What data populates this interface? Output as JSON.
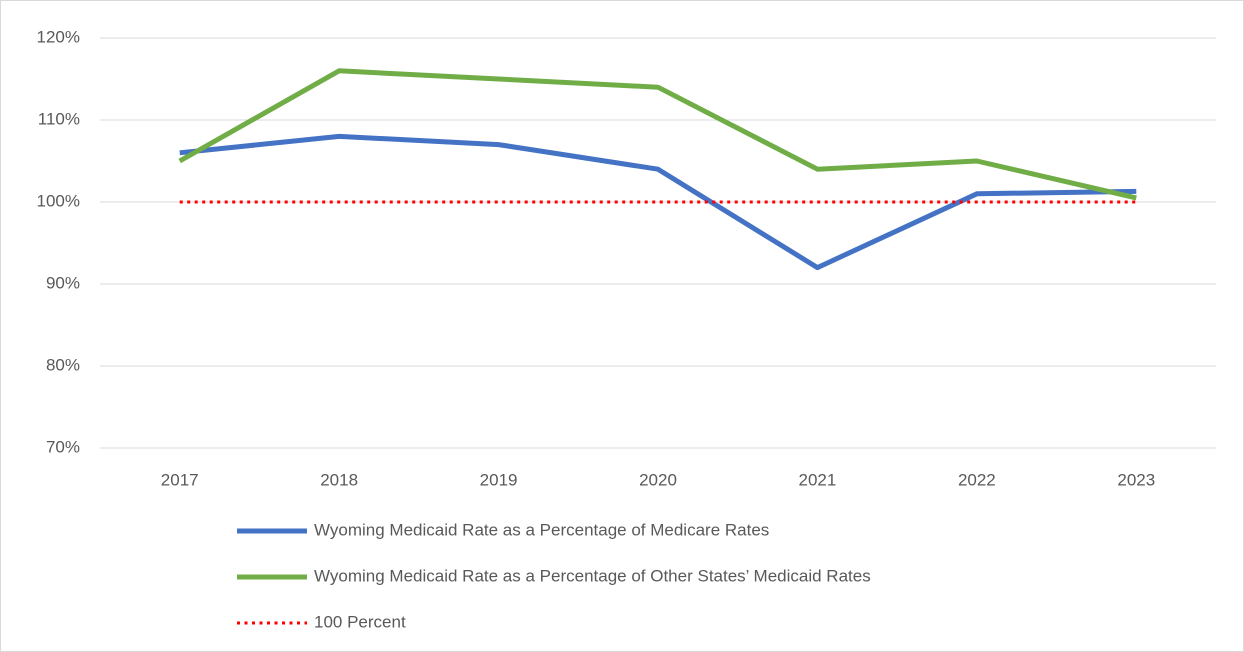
{
  "chart_data": {
    "type": "line",
    "categories": [
      "2017",
      "2018",
      "2019",
      "2020",
      "2021",
      "2022",
      "2023"
    ],
    "series": [
      {
        "name": "Wyoming Medicaid Rate as a Percentage of Medicare Rates",
        "color": "#4472c4",
        "style": "solid",
        "values": [
          106,
          108,
          107,
          104,
          92,
          101,
          101.3
        ]
      },
      {
        "name": "Wyoming Medicaid Rate as a Percentage of Other States’ Medicaid Rates",
        "color": "#70ad47",
        "style": "solid",
        "values": [
          105,
          116,
          115,
          114,
          104,
          105,
          100.5
        ]
      },
      {
        "name": "100 Percent",
        "color": "#ff0000",
        "style": "dotted",
        "values": [
          100,
          100,
          100,
          100,
          100,
          100,
          100
        ]
      }
    ],
    "ylim": [
      70,
      120
    ],
    "yticks": [
      {
        "value": 70,
        "label": "70%"
      },
      {
        "value": 80,
        "label": "80%"
      },
      {
        "value": 90,
        "label": "90%"
      },
      {
        "value": 100,
        "label": "100%"
      },
      {
        "value": 110,
        "label": "110%"
      },
      {
        "value": 120,
        "label": "120%"
      }
    ],
    "grid": true,
    "legend": "bottom"
  }
}
